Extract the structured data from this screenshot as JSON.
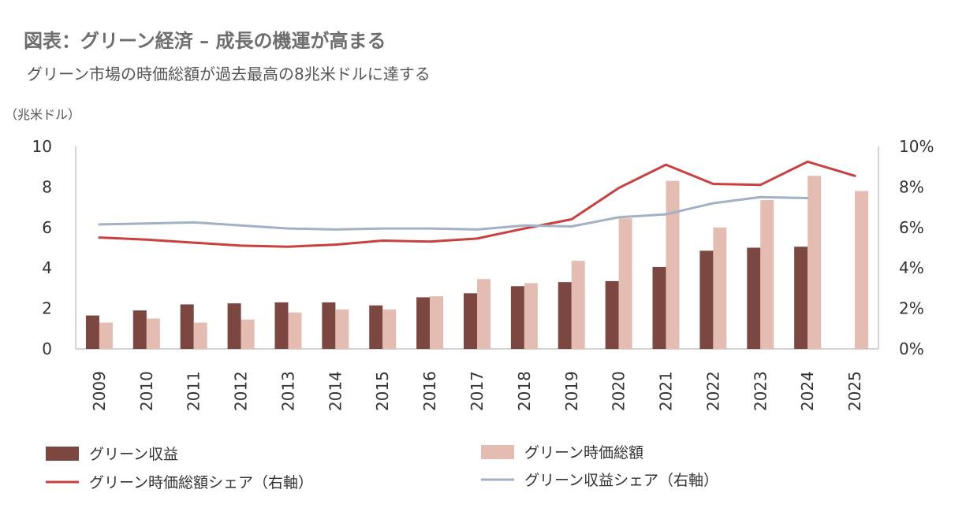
{
  "chart_data": {
    "type": "bar",
    "title": "図表：グリーン経済 – 成長の機運が高まる",
    "subtitle": "グリーン市場の時価総額が過去最高の8兆米ドルに達する",
    "ylabel_left": "（兆米ドル）",
    "ylim_left": [
      0,
      10
    ],
    "yticks_left": [
      "0",
      "2",
      "4",
      "6",
      "8",
      "10"
    ],
    "ylim_right": [
      0,
      10
    ],
    "yticks_right": [
      "0%",
      "2%",
      "4%",
      "6%",
      "8%",
      "10%"
    ],
    "categories": [
      "2009",
      "2010",
      "2011",
      "2012",
      "2013",
      "2014",
      "2015",
      "2016",
      "2017",
      "2018",
      "2019",
      "2020",
      "2021",
      "2022",
      "2023",
      "2024",
      "2025"
    ],
    "series": [
      {
        "name": "グリーン収益",
        "kind": "bar",
        "axis": "left",
        "color": "#7b4740",
        "values": [
          1.65,
          1.9,
          2.2,
          2.25,
          2.3,
          2.3,
          2.15,
          2.55,
          2.75,
          3.1,
          3.3,
          3.35,
          4.05,
          4.85,
          5.0,
          5.05,
          null
        ]
      },
      {
        "name": "グリーン時価総額",
        "kind": "bar",
        "axis": "left",
        "color": "#e4bcb2",
        "values": [
          1.3,
          1.5,
          1.3,
          1.45,
          1.8,
          1.95,
          1.95,
          2.6,
          3.45,
          3.25,
          4.35,
          6.45,
          8.3,
          6.0,
          7.35,
          8.55,
          7.8
        ]
      },
      {
        "name": "グリーン時価総額シェア（右軸）",
        "kind": "line",
        "axis": "right",
        "color": "#c9403f",
        "values": [
          5.5,
          5.4,
          5.25,
          5.1,
          5.05,
          5.15,
          5.35,
          5.3,
          5.45,
          5.95,
          6.4,
          7.95,
          9.1,
          8.15,
          8.1,
          9.25,
          8.55
        ]
      },
      {
        "name": "グリーン収益シェア（右軸）",
        "kind": "line",
        "axis": "right",
        "color": "#a3b1c6",
        "values": [
          6.15,
          6.2,
          6.25,
          6.1,
          5.95,
          5.9,
          5.95,
          5.95,
          5.9,
          6.1,
          6.05,
          6.5,
          6.65,
          7.2,
          7.5,
          7.45,
          null
        ]
      }
    ],
    "legend": [
      "グリーン収益",
      "グリーン時価総額",
      "グリーン時価総額シェア（右軸）",
      "グリーン収益シェア（右軸）"
    ]
  }
}
